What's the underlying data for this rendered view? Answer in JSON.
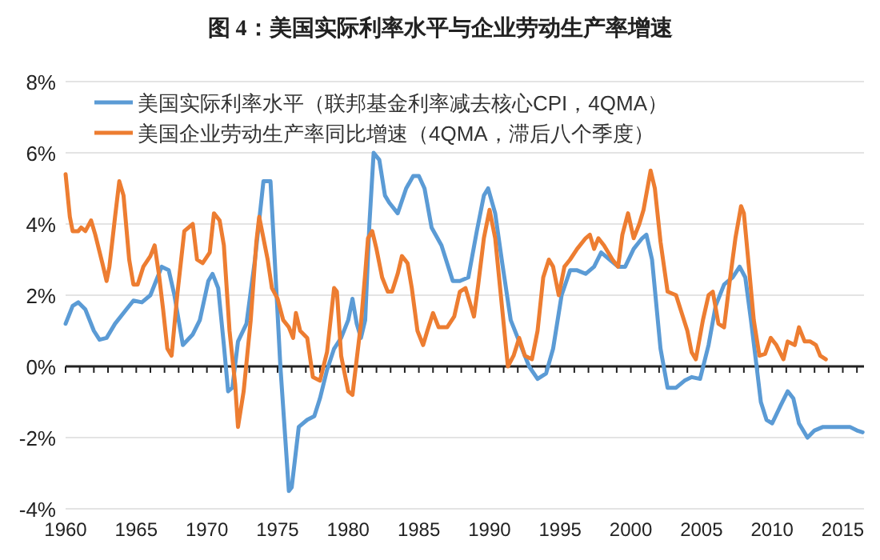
{
  "chart_data": {
    "type": "line",
    "title": "图 4：美国实际利率水平与企业劳动生产率增速",
    "xlim": [
      1960,
      2016.5
    ],
    "ylim": [
      -4,
      8
    ],
    "xticks": [
      {
        "value": 1960,
        "label": "1960"
      },
      {
        "value": 1961,
        "label": null
      },
      {
        "value": 1962,
        "label": null
      },
      {
        "value": 1963,
        "label": null
      },
      {
        "value": 1964,
        "label": null
      },
      {
        "value": 1965,
        "label": "1965"
      },
      {
        "value": 1966,
        "label": null
      },
      {
        "value": 1967,
        "label": null
      },
      {
        "value": 1968,
        "label": null
      },
      {
        "value": 1969,
        "label": null
      },
      {
        "value": 1970,
        "label": "1970"
      },
      {
        "value": 1971,
        "label": null
      },
      {
        "value": 1972,
        "label": null
      },
      {
        "value": 1973,
        "label": null
      },
      {
        "value": 1974,
        "label": null
      },
      {
        "value": 1975,
        "label": "1975"
      },
      {
        "value": 1976,
        "label": null
      },
      {
        "value": 1977,
        "label": null
      },
      {
        "value": 1978,
        "label": null
      },
      {
        "value": 1979,
        "label": null
      },
      {
        "value": 1980,
        "label": "1980"
      },
      {
        "value": 1981,
        "label": null
      },
      {
        "value": 1982,
        "label": null
      },
      {
        "value": 1983,
        "label": null
      },
      {
        "value": 1984,
        "label": null
      },
      {
        "value": 1985,
        "label": "1985"
      },
      {
        "value": 1986,
        "label": null
      },
      {
        "value": 1987,
        "label": null
      },
      {
        "value": 1988,
        "label": null
      },
      {
        "value": 1989,
        "label": null
      },
      {
        "value": 1990,
        "label": "1990"
      },
      {
        "value": 1991,
        "label": null
      },
      {
        "value": 1992,
        "label": null
      },
      {
        "value": 1993,
        "label": null
      },
      {
        "value": 1994,
        "label": null
      },
      {
        "value": 1995,
        "label": "1995"
      },
      {
        "value": 1996,
        "label": null
      },
      {
        "value": 1997,
        "label": null
      },
      {
        "value": 1998,
        "label": null
      },
      {
        "value": 1999,
        "label": null
      },
      {
        "value": 2000,
        "label": "2000"
      },
      {
        "value": 2001,
        "label": null
      },
      {
        "value": 2002,
        "label": null
      },
      {
        "value": 2003,
        "label": null
      },
      {
        "value": 2004,
        "label": null
      },
      {
        "value": 2005,
        "label": "2005"
      },
      {
        "value": 2006,
        "label": null
      },
      {
        "value": 2007,
        "label": null
      },
      {
        "value": 2008,
        "label": null
      },
      {
        "value": 2009,
        "label": null
      },
      {
        "value": 2010,
        "label": "2010"
      },
      {
        "value": 2011,
        "label": null
      },
      {
        "value": 2012,
        "label": null
      },
      {
        "value": 2013,
        "label": null
      },
      {
        "value": 2014,
        "label": null
      },
      {
        "value": 2015,
        "label": "2015"
      },
      {
        "value": 2016,
        "label": null
      }
    ],
    "yticks": [
      {
        "value": -4,
        "label": "-4%"
      },
      {
        "value": -2,
        "label": "-2%"
      },
      {
        "value": 0,
        "label": "0%"
      },
      {
        "value": 2,
        "label": "2%"
      },
      {
        "value": 4,
        "label": "4%"
      },
      {
        "value": 6,
        "label": "6%"
      },
      {
        "value": 8,
        "label": "8%"
      }
    ],
    "grid": "y",
    "legend": "top left",
    "series": [
      {
        "name": "美国实际利率水平（联邦基金利率减去核心CPI，4QMA）",
        "color": "#5b9bd5",
        "x": [
          1960.0,
          1960.5,
          1960.9,
          1961.4,
          1962.0,
          1962.4,
          1962.9,
          1963.5,
          1964.3,
          1964.8,
          1965.4,
          1966.0,
          1966.5,
          1966.8,
          1967.3,
          1967.7,
          1968.0,
          1968.3,
          1969.0,
          1969.5,
          1970.1,
          1970.4,
          1970.8,
          1971.2,
          1971.5,
          1971.8,
          1972.2,
          1972.8,
          1973.4,
          1974.0,
          1974.5,
          1974.8,
          1975.2,
          1975.8,
          1976.0,
          1976.5,
          1977.1,
          1977.6,
          1978.0,
          1978.5,
          1979.0,
          1979.5,
          1980.0,
          1980.3,
          1980.6,
          1980.9,
          1981.2,
          1981.5,
          1981.8,
          1982.2,
          1982.6,
          1982.9,
          1983.5,
          1984.1,
          1984.6,
          1985.0,
          1985.4,
          1985.9,
          1986.6,
          1987.4,
          1987.9,
          1988.5,
          1989.1,
          1989.6,
          1989.9,
          1990.4,
          1990.9,
          1991.5,
          1992.3,
          1992.8,
          1993.4,
          1994.0,
          1994.5,
          1995.1,
          1995.7,
          1996.2,
          1996.8,
          1997.4,
          1997.9,
          1998.5,
          1999.1,
          1999.6,
          2000.2,
          2000.8,
          2001.1,
          2001.5,
          2002.1,
          2002.6,
          2003.2,
          2003.8,
          2004.3,
          2004.9,
          2005.5,
          2006.0,
          2006.6,
          2007.2,
          2007.7,
          2008.1,
          2008.5,
          2008.9,
          2009.2,
          2009.6,
          2010.0,
          2010.6,
          2011.1,
          2011.5,
          2011.9,
          2012.5,
          2013.0,
          2013.6,
          2014.2,
          2014.9,
          2015.5,
          2016.0,
          2016.4
        ],
        "values": [
          1.2,
          1.7,
          1.8,
          1.6,
          1.0,
          0.75,
          0.8,
          1.2,
          1.6,
          1.85,
          1.8,
          2.0,
          2.5,
          2.8,
          2.7,
          2.0,
          1.3,
          0.6,
          0.9,
          1.3,
          2.4,
          2.6,
          2.2,
          0.6,
          -0.7,
          -0.6,
          0.7,
          1.2,
          3.0,
          5.2,
          5.2,
          3.0,
          0.0,
          -3.5,
          -3.4,
          -1.7,
          -1.5,
          -1.4,
          -0.9,
          -0.1,
          0.5,
          0.8,
          1.3,
          1.9,
          1.2,
          0.8,
          1.3,
          4.0,
          6.0,
          5.8,
          4.8,
          4.6,
          4.3,
          5.0,
          5.35,
          5.35,
          5.0,
          3.9,
          3.4,
          2.4,
          2.4,
          2.5,
          3.8,
          4.8,
          5.0,
          4.3,
          2.9,
          1.3,
          0.5,
          0.0,
          -0.35,
          -0.2,
          0.5,
          2.0,
          2.7,
          2.7,
          2.6,
          2.8,
          3.2,
          3.0,
          2.8,
          2.8,
          3.3,
          3.6,
          3.7,
          3.0,
          0.5,
          -0.6,
          -0.6,
          -0.4,
          -0.3,
          -0.35,
          0.6,
          1.7,
          2.3,
          2.5,
          2.8,
          2.5,
          1.3,
          0.0,
          -1.0,
          -1.5,
          -1.6,
          -1.1,
          -0.7,
          -0.9,
          -1.6,
          -2.0,
          -1.8,
          -1.7,
          -1.7,
          -1.7,
          -1.7,
          -1.8,
          -1.85
        ]
      },
      {
        "name": "美国企业劳动生产率同比增速（4QMA，滞后八个季度）",
        "color": "#ed7d31",
        "x": [
          1960.0,
          1960.3,
          1960.5,
          1960.9,
          1961.1,
          1961.4,
          1961.8,
          1962.1,
          1962.6,
          1962.9,
          1963.1,
          1963.5,
          1963.8,
          1964.1,
          1964.5,
          1964.8,
          1965.1,
          1965.5,
          1966.0,
          1966.3,
          1966.6,
          1966.9,
          1967.2,
          1967.5,
          1967.9,
          1968.4,
          1969.0,
          1969.3,
          1969.7,
          1970.2,
          1970.5,
          1970.9,
          1971.2,
          1971.6,
          1972.0,
          1972.2,
          1972.6,
          1973.1,
          1973.5,
          1973.7,
          1974.0,
          1974.3,
          1974.6,
          1975.0,
          1975.4,
          1975.8,
          1976.1,
          1976.3,
          1976.6,
          1977.1,
          1977.5,
          1978.0,
          1978.5,
          1979.0,
          1979.2,
          1979.5,
          1980.0,
          1980.3,
          1980.6,
          1980.9,
          1981.2,
          1981.4,
          1981.7,
          1982.0,
          1982.4,
          1982.8,
          1983.1,
          1983.5,
          1983.8,
          1984.2,
          1984.5,
          1984.9,
          1985.3,
          1985.6,
          1986.0,
          1986.4,
          1987.0,
          1987.5,
          1987.9,
          1988.3,
          1988.9,
          1989.2,
          1989.6,
          1990.0,
          1990.4,
          1990.8,
          1991.3,
          1991.7,
          1992.1,
          1992.5,
          1993.0,
          1993.4,
          1993.8,
          1994.2,
          1994.5,
          1994.9,
          1995.3,
          1995.7,
          1996.2,
          1996.8,
          1997.1,
          1997.4,
          1997.7,
          1998.1,
          1998.7,
          1999.1,
          1999.4,
          1999.8,
          2000.2,
          2000.6,
          2000.9,
          2001.4,
          2001.7,
          2002.1,
          2002.6,
          2003.2,
          2003.6,
          2004.0,
          2004.3,
          2004.6,
          2005.1,
          2005.5,
          2005.8,
          2006.2,
          2006.6,
          2007.0,
          2007.4,
          2007.8,
          2008.0,
          2008.4,
          2008.7,
          2009.1,
          2009.5,
          2009.9,
          2010.3,
          2010.8,
          2011.1,
          2011.6,
          2011.9,
          2012.3,
          2012.7,
          2013.1,
          2013.4,
          2013.8
        ],
        "values": [
          5.4,
          4.2,
          3.8,
          3.8,
          3.9,
          3.8,
          4.1,
          3.7,
          2.9,
          2.4,
          2.8,
          4.2,
          5.2,
          4.8,
          3.0,
          2.3,
          2.3,
          2.8,
          3.1,
          3.4,
          2.6,
          1.6,
          0.5,
          0.3,
          2.0,
          3.8,
          4.0,
          3.0,
          2.9,
          3.2,
          4.3,
          4.1,
          3.4,
          1.0,
          -0.5,
          -1.7,
          -0.7,
          1.3,
          3.5,
          4.2,
          3.6,
          3.0,
          2.2,
          1.9,
          1.3,
          1.1,
          0.8,
          1.5,
          1.0,
          0.8,
          -0.3,
          -0.4,
          0.4,
          2.2,
          2.1,
          0.3,
          -0.7,
          -0.8,
          0.2,
          1.2,
          2.6,
          3.6,
          3.8,
          3.3,
          2.5,
          2.1,
          2.1,
          2.6,
          3.1,
          2.9,
          2.2,
          1.0,
          0.6,
          1.0,
          1.5,
          1.1,
          1.1,
          1.4,
          2.1,
          2.2,
          1.4,
          2.3,
          3.6,
          4.4,
          3.6,
          2.0,
          0.0,
          0.3,
          0.8,
          0.3,
          0.2,
          1.0,
          2.5,
          3.0,
          2.8,
          2.0,
          2.8,
          3.0,
          3.3,
          3.6,
          3.7,
          3.3,
          3.6,
          3.4,
          3.0,
          2.8,
          3.7,
          4.3,
          3.6,
          4.0,
          4.4,
          5.5,
          5.0,
          3.5,
          2.1,
          2.0,
          1.5,
          1.0,
          0.4,
          0.2,
          1.3,
          2.0,
          2.1,
          1.2,
          1.1,
          2.4,
          3.6,
          4.5,
          4.3,
          2.6,
          1.3,
          0.3,
          0.35,
          0.8,
          0.6,
          0.2,
          0.7,
          0.6,
          1.1,
          0.7,
          0.7,
          0.6,
          0.3,
          0.2
        ]
      }
    ]
  }
}
